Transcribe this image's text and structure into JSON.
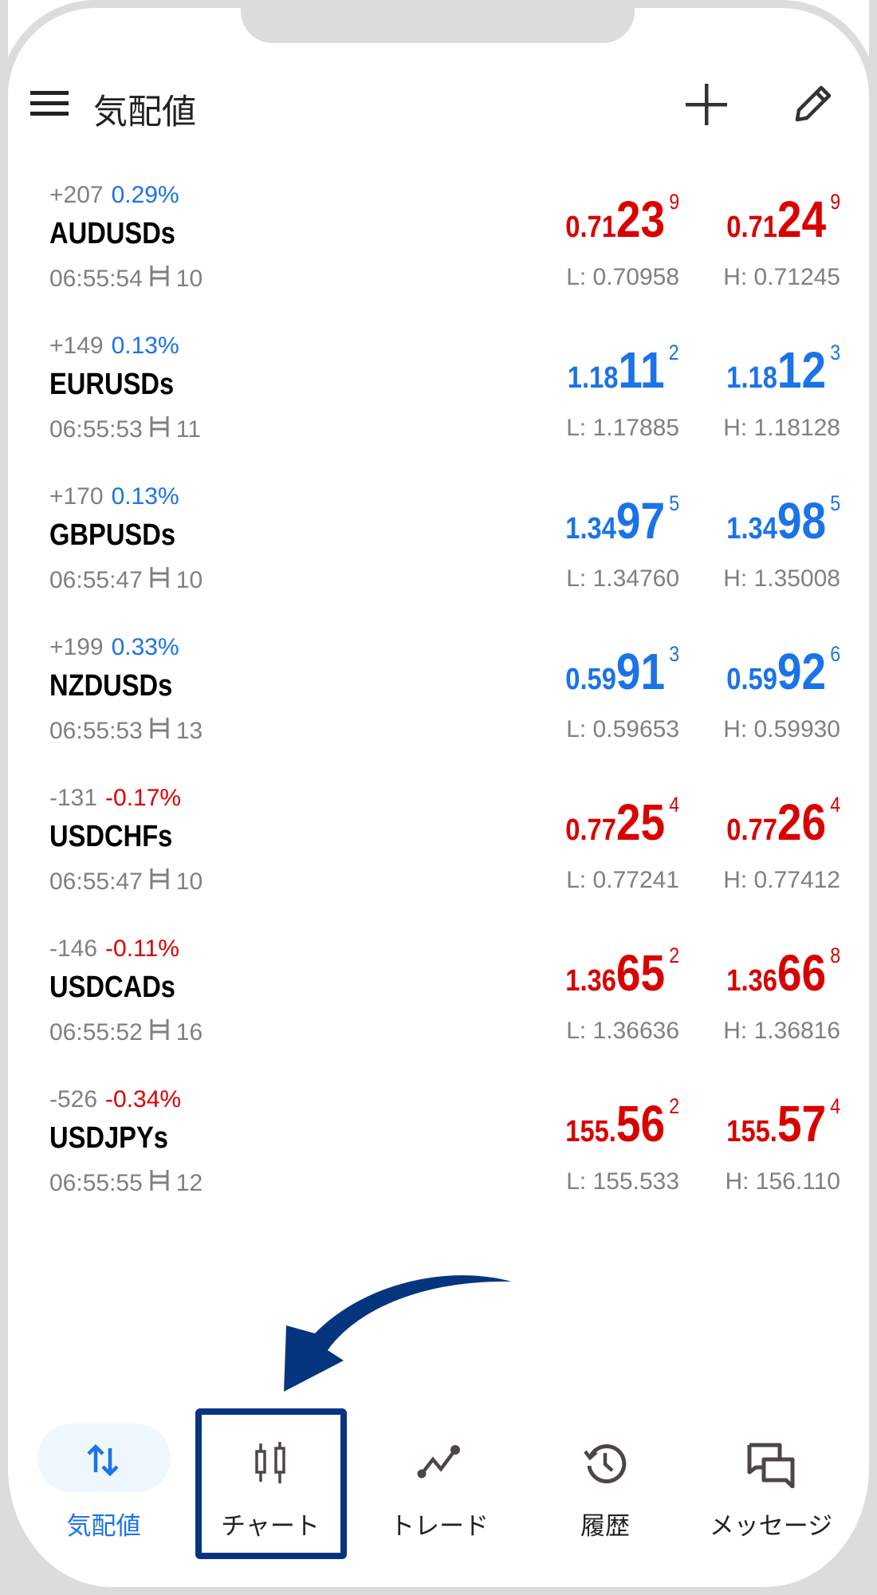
{
  "header": {
    "title": "気配値",
    "menu_icon": "hamburger-icon",
    "add_icon": "plus-icon",
    "edit_icon": "pencil-icon"
  },
  "colors": {
    "up": "#1a73e8",
    "down": "#d90000",
    "muted": "#808080",
    "icon": "#4d4646",
    "highlight": "#063580"
  },
  "quotes": [
    {
      "change": "+207",
      "pct": "0.29%",
      "pct_dir": "up",
      "symbol": "AUDUSDs",
      "time": "06:55:54",
      "spread": "10",
      "price_dir": "down",
      "bid": {
        "pre": "0.71",
        "big": "23",
        "sup": "9"
      },
      "ask": {
        "pre": "0.71",
        "big": "24",
        "sup": "9"
      },
      "low": "L: 0.70958",
      "high": "H: 0.71245"
    },
    {
      "change": "+149",
      "pct": "0.13%",
      "pct_dir": "up",
      "symbol": "EURUSDs",
      "time": "06:55:53",
      "spread": "11",
      "price_dir": "up",
      "bid": {
        "pre": "1.18",
        "big": "11",
        "sup": "2"
      },
      "ask": {
        "pre": "1.18",
        "big": "12",
        "sup": "3"
      },
      "low": "L: 1.17885",
      "high": "H: 1.18128"
    },
    {
      "change": "+170",
      "pct": "0.13%",
      "pct_dir": "up",
      "symbol": "GBPUSDs",
      "time": "06:55:47",
      "spread": "10",
      "price_dir": "up",
      "bid": {
        "pre": "1.34",
        "big": "97",
        "sup": "5"
      },
      "ask": {
        "pre": "1.34",
        "big": "98",
        "sup": "5"
      },
      "low": "L: 1.34760",
      "high": "H: 1.35008"
    },
    {
      "change": "+199",
      "pct": "0.33%",
      "pct_dir": "up",
      "symbol": "NZDUSDs",
      "time": "06:55:53",
      "spread": "13",
      "price_dir": "up",
      "bid": {
        "pre": "0.59",
        "big": "91",
        "sup": "3"
      },
      "ask": {
        "pre": "0.59",
        "big": "92",
        "sup": "6"
      },
      "low": "L: 0.59653",
      "high": "H: 0.59930"
    },
    {
      "change": "-131",
      "pct": "-0.17%",
      "pct_dir": "down",
      "symbol": "USDCHFs",
      "time": "06:55:47",
      "spread": "10",
      "price_dir": "down",
      "bid": {
        "pre": "0.77",
        "big": "25",
        "sup": "4"
      },
      "ask": {
        "pre": "0.77",
        "big": "26",
        "sup": "4"
      },
      "low": "L: 0.77241",
      "high": "H: 0.77412"
    },
    {
      "change": "-146",
      "pct": "-0.11%",
      "pct_dir": "down",
      "symbol": "USDCADs",
      "time": "06:55:52",
      "spread": "16",
      "price_dir": "down",
      "bid": {
        "pre": "1.36",
        "big": "65",
        "sup": "2"
      },
      "ask": {
        "pre": "1.36",
        "big": "66",
        "sup": "8"
      },
      "low": "L: 1.36636",
      "high": "H: 1.36816"
    },
    {
      "change": "-526",
      "pct": "-0.34%",
      "pct_dir": "down",
      "symbol": "USDJPYs",
      "time": "06:55:55",
      "spread": "12",
      "price_dir": "down",
      "bid": {
        "pre": "155.",
        "big": "56",
        "sup": "2"
      },
      "ask": {
        "pre": "155.",
        "big": "57",
        "sup": "4"
      },
      "low": "L: 155.533",
      "high": "H: 156.110"
    }
  ],
  "nav": [
    {
      "label": "気配値",
      "icon": "swap-vertical-icon",
      "active": true
    },
    {
      "label": "チャート",
      "icon": "candlestick-icon",
      "active": false,
      "highlighted": true
    },
    {
      "label": "トレード",
      "icon": "trade-line-icon",
      "active": false
    },
    {
      "label": "履歴",
      "icon": "history-icon",
      "active": false
    },
    {
      "label": "メッセージ",
      "icon": "messages-icon",
      "active": false
    }
  ]
}
